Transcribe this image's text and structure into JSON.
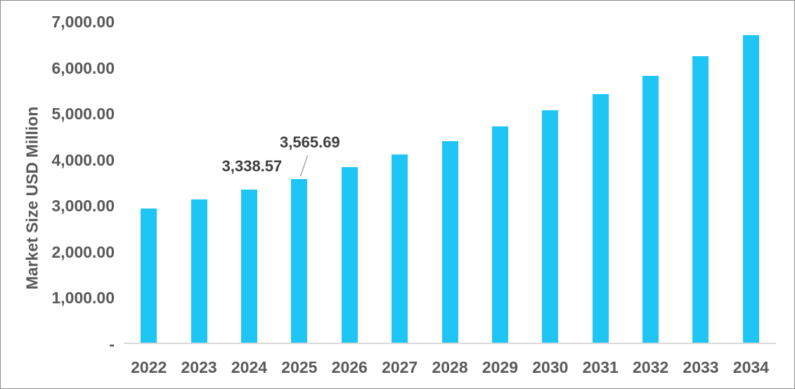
{
  "chart_data": {
    "type": "bar",
    "title": "",
    "xlabel": "",
    "ylabel": "Market Size USD Million",
    "categories": [
      "2022",
      "2023",
      "2024",
      "2025",
      "2026",
      "2027",
      "2028",
      "2029",
      "2030",
      "2031",
      "2032",
      "2033",
      "2034"
    ],
    "values": [
      2930,
      3125,
      3338.57,
      3565.69,
      3830,
      4105,
      4395,
      4720,
      5065,
      5420,
      5815,
      6245,
      6715
    ],
    "ylim": [
      0,
      7000
    ],
    "grid": false,
    "legend_position": "none",
    "bar_color": "#1ec5f5",
    "axis_line_color": "#d9d9d9",
    "tick_color": "#595959",
    "data_label_color": "#3f3f3f",
    "leader_line_color": "#a6a6a6",
    "y_ticks": [
      {
        "value": 7000,
        "label": "7,000.00"
      },
      {
        "value": 6000,
        "label": "6,000.00"
      },
      {
        "value": 5000,
        "label": "5,000.00"
      },
      {
        "value": 4000,
        "label": "4,000.00"
      },
      {
        "value": 3000,
        "label": "3,000.00"
      },
      {
        "value": 2000,
        "label": "2,000.00"
      },
      {
        "value": 1000,
        "label": "1,000.00"
      },
      {
        "value": 0,
        "label": "-"
      }
    ],
    "data_labels": [
      {
        "category": "2024",
        "text": "3,338.57",
        "dx": 4,
        "gap": 20,
        "leader": false
      },
      {
        "category": "2025",
        "text": "3,565.69",
        "dx": 15,
        "gap": 39,
        "leader": true
      }
    ]
  }
}
